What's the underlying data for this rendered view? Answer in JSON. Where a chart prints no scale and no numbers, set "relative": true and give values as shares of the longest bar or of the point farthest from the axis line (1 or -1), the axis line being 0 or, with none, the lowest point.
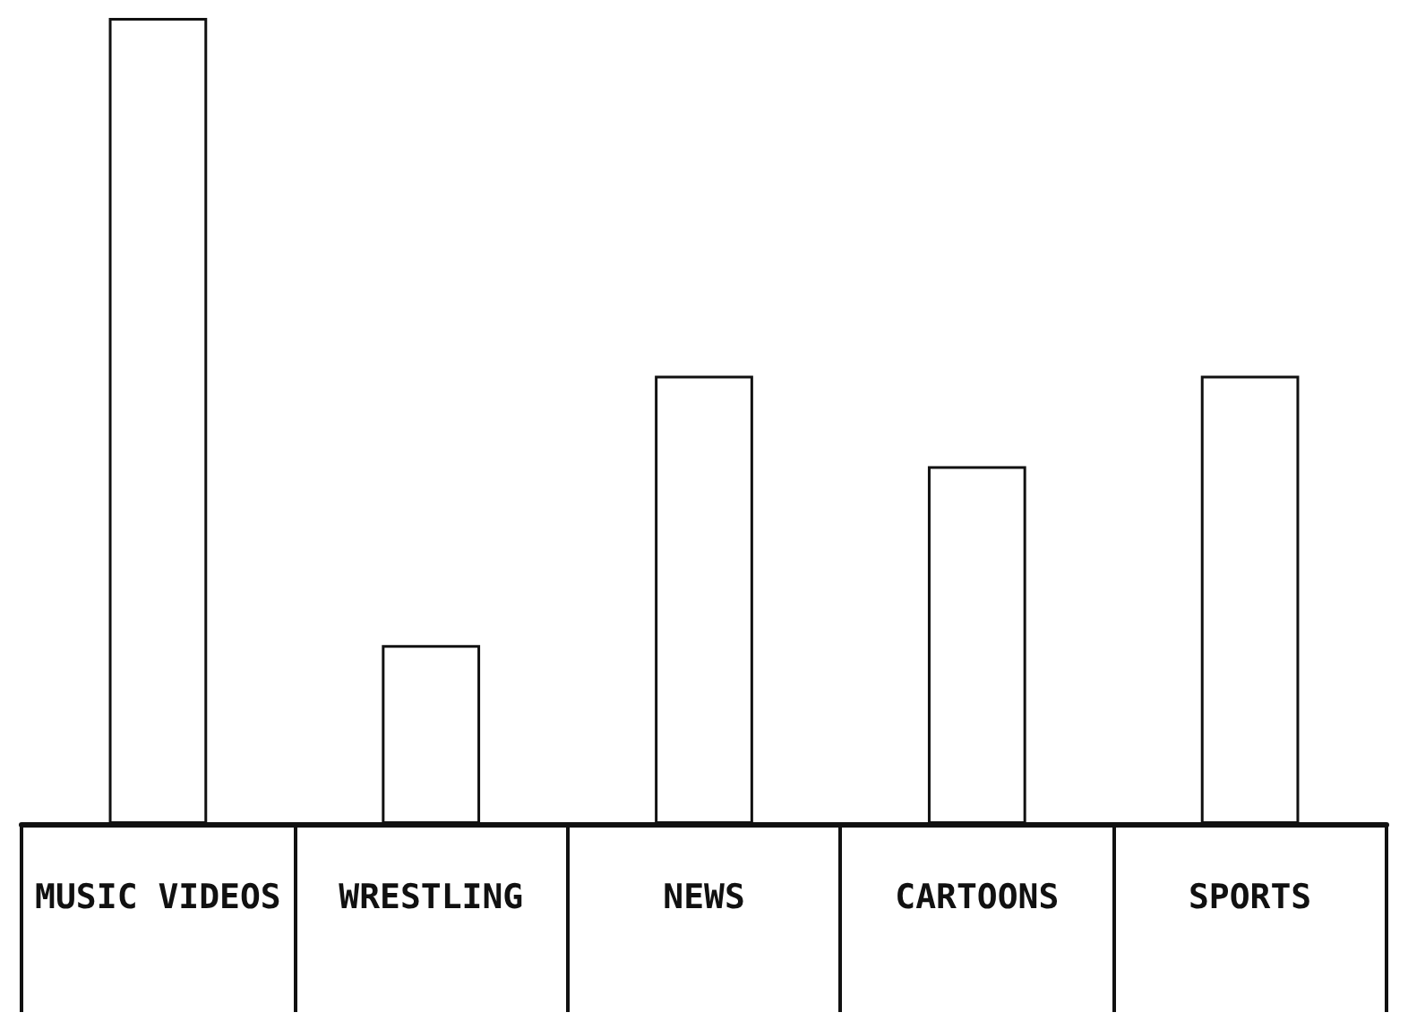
{
  "chart_data": {
    "type": "bar",
    "relative": true,
    "categories": [
      "MUSIC VIDEOS",
      "WRESTLING",
      "NEWS",
      "CARTOONS",
      "SPORTS"
    ],
    "values": [
      1,
      0.222,
      0.556,
      0.444,
      0.556
    ],
    "color": "#ffffff",
    "grid": false
  }
}
